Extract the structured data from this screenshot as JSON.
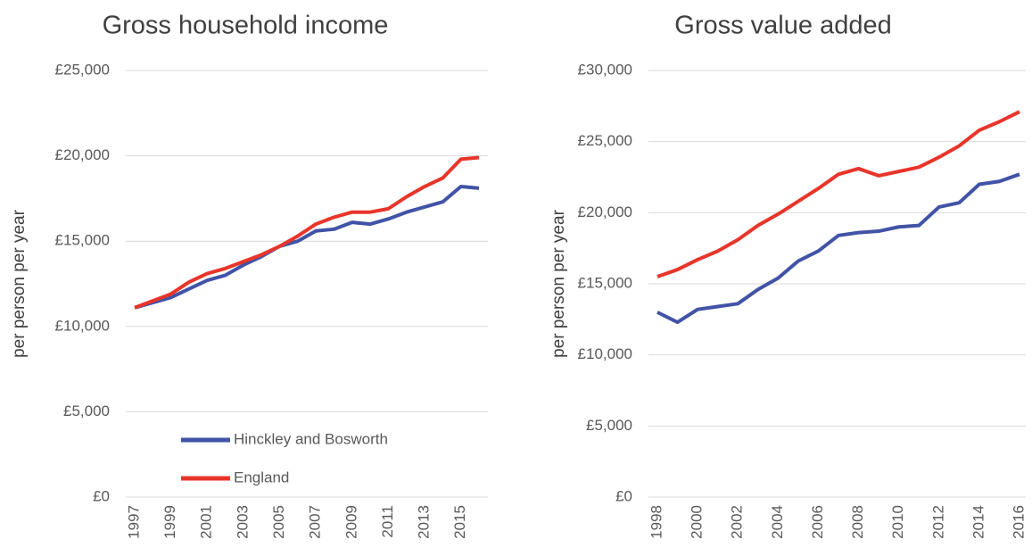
{
  "chart_data": [
    {
      "type": "line",
      "title": "Gross household income",
      "y_label": "per person per year",
      "categories": [
        "1997",
        null,
        "1999",
        null,
        "2001",
        null,
        "2003",
        null,
        "2005",
        null,
        "2007",
        null,
        "2009",
        null,
        "2011",
        null,
        "2013",
        null,
        "2015",
        null
      ],
      "series": [
        {
          "name": "Hinckley and Bosworth",
          "color": "#4153a6",
          "values": [
            11100,
            11400,
            11700,
            12200,
            12700,
            13000,
            13600,
            14100,
            14700,
            15000,
            15600,
            15700,
            16100,
            16000,
            16300,
            16700,
            17000,
            17300,
            18200,
            18100
          ]
        },
        {
          "name": "England",
          "color": "#e8352a",
          "values": [
            11100,
            11500,
            11900,
            12600,
            13100,
            13400,
            13800,
            14200,
            14700,
            15300,
            16000,
            16400,
            16700,
            16700,
            16900,
            17600,
            18200,
            18700,
            19800,
            19900
          ]
        }
      ],
      "ylim": [
        0,
        25000
      ],
      "yticks": [
        {
          "value": 0,
          "label": "£0"
        },
        {
          "value": 5000,
          "label": "£5,000"
        },
        {
          "value": 10000,
          "label": "£10,000"
        },
        {
          "value": 15000,
          "label": "£15,000"
        },
        {
          "value": 20000,
          "label": "£20,000"
        },
        {
          "value": 25000,
          "label": "£25,000"
        }
      ],
      "grid": true,
      "legend": "bottom"
    },
    {
      "type": "line",
      "title": "Gross value added",
      "y_label": "per person per year",
      "categories": [
        "1998",
        null,
        "2000",
        null,
        "2002",
        null,
        "2004",
        null,
        "2006",
        null,
        "2008",
        null,
        "2010",
        null,
        "2012",
        null,
        "2014",
        null,
        "2016"
      ],
      "series": [
        {
          "color": "#4153a6",
          "values": [
            13000,
            12300,
            13200,
            13400,
            13600,
            14600,
            15400,
            16600,
            17300,
            18400,
            18600,
            18700,
            19000,
            19100,
            20400,
            20700,
            22000,
            22200,
            22700
          ]
        },
        {
          "color": "#e8352a",
          "values": [
            15500,
            16000,
            16700,
            17300,
            18100,
            19100,
            19900,
            20800,
            21700,
            22700,
            23100,
            22600,
            22900,
            23200,
            23900,
            24700,
            25800,
            26400,
            27100
          ]
        }
      ],
      "ylim": [
        0,
        30000
      ],
      "yticks": [
        {
          "value": 0,
          "label": "£0"
        },
        {
          "value": 5000,
          "label": "£5,000"
        },
        {
          "value": 10000,
          "label": "£10,000"
        },
        {
          "value": 15000,
          "label": "£15,000"
        },
        {
          "value": 20000,
          "label": "£20,000"
        },
        {
          "value": 25000,
          "label": "£25,000"
        },
        {
          "value": 30000,
          "label": "£30,000"
        }
      ],
      "grid": true
    }
  ]
}
